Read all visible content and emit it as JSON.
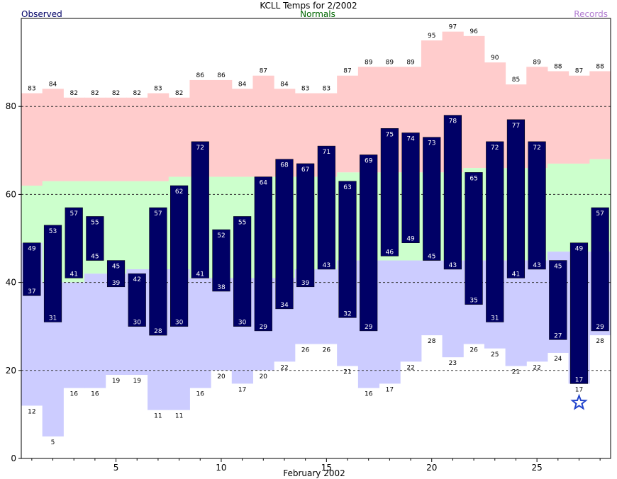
{
  "chart_data": {
    "type": "bar",
    "title": "KCLL Temps for 2/2002",
    "xlabel": "February 2002",
    "ylabel": "",
    "legend": [
      {
        "name": "Observed",
        "color": "#000066",
        "position": "top-left"
      },
      {
        "name": "Normals",
        "color": "#006600",
        "position": "top-center"
      },
      {
        "name": "Records",
        "color": "#b07ad0",
        "position": "top-right"
      }
    ],
    "ylim": [
      0,
      100
    ],
    "yticks": [
      0,
      20,
      40,
      60,
      80
    ],
    "xticks": [
      5,
      10,
      15,
      20,
      25
    ],
    "grid": "dashed horizontal at 20, 40, 60, 80",
    "days": [
      1,
      2,
      3,
      4,
      5,
      6,
      7,
      8,
      9,
      10,
      11,
      12,
      13,
      14,
      15,
      16,
      17,
      18,
      19,
      20,
      21,
      22,
      23,
      24,
      25,
      26,
      27,
      28
    ],
    "observed_high": [
      49,
      53,
      57,
      55,
      45,
      42,
      57,
      62,
      72,
      52,
      55,
      64,
      68,
      67,
      71,
      63,
      69,
      75,
      74,
      73,
      78,
      65,
      72,
      77,
      72,
      45,
      49,
      57
    ],
    "observed_low": [
      37,
      31,
      41,
      45,
      39,
      30,
      28,
      30,
      41,
      38,
      30,
      29,
      34,
      39,
      43,
      32,
      29,
      46,
      49,
      45,
      43,
      35,
      31,
      41,
      43,
      27,
      17,
      29
    ],
    "normal_high": [
      62,
      63,
      63,
      63,
      63,
      63,
      63,
      64,
      64,
      64,
      64,
      64,
      64,
      64,
      64,
      65,
      65,
      65,
      65,
      65,
      65,
      66,
      66,
      66,
      66,
      67,
      67,
      68
    ],
    "normal_low": [
      49,
      40,
      40,
      42,
      42,
      43,
      43,
      43,
      41,
      41,
      41,
      41,
      41,
      43,
      43,
      45,
      45,
      45,
      45,
      45,
      45,
      45,
      45,
      45,
      45,
      47,
      47,
      47
    ],
    "record_high": [
      83,
      84,
      82,
      82,
      82,
      82,
      83,
      82,
      86,
      86,
      84,
      87,
      84,
      83,
      83,
      87,
      89,
      89,
      89,
      95,
      97,
      96,
      90,
      85,
      89,
      88,
      87,
      88
    ],
    "record_low": [
      12,
      5,
      16,
      16,
      19,
      19,
      11,
      11,
      16,
      20,
      17,
      20,
      22,
      26,
      26,
      21,
      16,
      17,
      22,
      28,
      23,
      26,
      25,
      21,
      22,
      24,
      17,
      28
    ],
    "record_markers": [
      {
        "day": 27,
        "type": "record low",
        "symbol": "star",
        "color": "#2244cc"
      }
    ],
    "colors": {
      "record_high_band": "#ffcccc",
      "normal_band": "#ccffcc",
      "record_low_band": "#ccccff",
      "observed_bar": "#000066",
      "bar_label": "#ffffff",
      "record_label": "#000000",
      "grid": "#333333"
    }
  }
}
